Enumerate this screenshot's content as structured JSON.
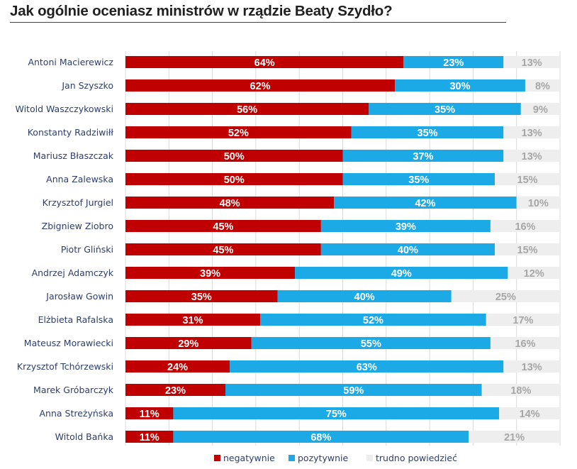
{
  "chart_data": {
    "type": "bar",
    "orientation": "horizontal",
    "stacked": true,
    "title": "Jak ogólnie oceniasz ministrów w rządzie Beaty Szydło?",
    "xlim": [
      0,
      100
    ],
    "grid": true,
    "legend_position": "bottom",
    "categories": [
      "Antoni Macierewicz",
      "Jan Szyszko",
      "Witold Waszczykowski",
      "Konstanty Radziwiłł",
      "Mariusz Błaszczak",
      "Anna Zalewska",
      "Krzysztof Jurgiel",
      "Zbigniew Ziobro",
      "Piotr Gliński",
      "Andrzej Adamczyk",
      "Jarosław Gowin",
      "Elżbieta Rafalska",
      "Mateusz Morawiecki",
      "Krzysztof Tchórzewski",
      "Marek Gróbarczyk",
      "Anna Streżyńska",
      "Witold Bańka"
    ],
    "series": [
      {
        "name": "negatywnie",
        "color": "#c00000",
        "text_color": "#ffffff",
        "values": [
          64,
          62,
          56,
          52,
          50,
          50,
          48,
          45,
          45,
          39,
          35,
          31,
          29,
          24,
          23,
          11,
          11
        ]
      },
      {
        "name": "pozytywnie",
        "color": "#1caae6",
        "text_color": "#ffffff",
        "values": [
          23,
          30,
          35,
          35,
          37,
          35,
          42,
          39,
          40,
          49,
          40,
          52,
          55,
          63,
          59,
          75,
          68
        ]
      },
      {
        "name": "trudno powiedzieć",
        "color": "#eeeeee",
        "text_color": "#a6a6a6",
        "values": [
          13,
          8,
          9,
          13,
          13,
          15,
          10,
          16,
          15,
          12,
          25,
          17,
          16,
          13,
          18,
          14,
          21
        ]
      }
    ],
    "value_suffix": "%"
  },
  "colors": {
    "title_rule": "#e00000",
    "gridline": "#d9d9d9",
    "label": "#2c3e6b"
  }
}
